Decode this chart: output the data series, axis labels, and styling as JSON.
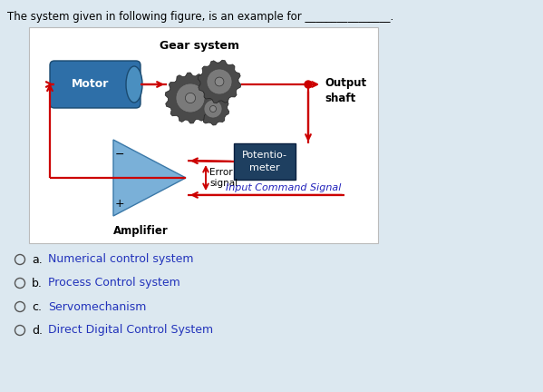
{
  "bg_color": "#dce8f0",
  "diagram_bg": "#ffffff",
  "title_text": "The system given in following figure, is an example for ________________.",
  "title_fontsize": 8.5,
  "diagram_title": "Gear system",
  "motor_label": "Motor",
  "motor_color_top": "#3d7fbf",
  "motor_color": "#2e6fa8",
  "potentio_label": "Potentio-\nmeter",
  "potentio_color": "#1e3f60",
  "output_label": "Output\nshaft",
  "error_label": "Error\nsignal",
  "input_cmd_label": "Input Command Signal",
  "amplifier_label": "Amplifier",
  "arrow_color": "#cc0000",
  "input_cmd_color": "#2222bb",
  "amp_color": "#7ab0d8",
  "options": [
    {
      "letter": "a.",
      "text": "Numerical control system"
    },
    {
      "letter": "b.",
      "text": "Process Control system"
    },
    {
      "letter": "c.",
      "text": "Servomechanism"
    },
    {
      "letter": "d.",
      "text": "Direct Digital Control System"
    }
  ],
  "option_color": "#2233bb",
  "option_fontsize": 9.0
}
